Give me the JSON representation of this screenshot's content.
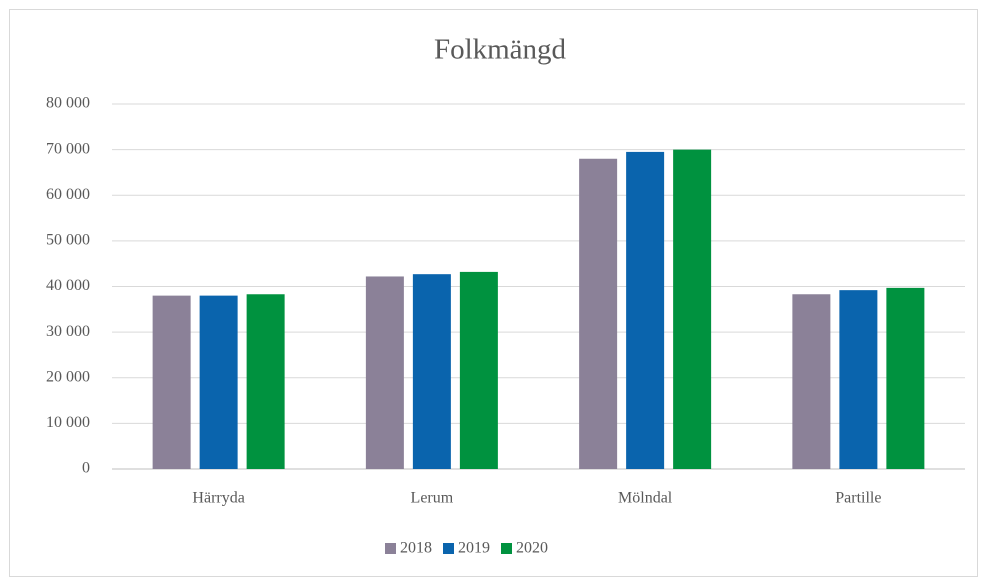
{
  "chart_data": {
    "type": "bar",
    "title": "Folkmängd",
    "categories": [
      "Härryda",
      "Lerum",
      "Mölndal",
      "Partille"
    ],
    "series": [
      {
        "name": "2018",
        "color": "#8b8198",
        "values": [
          38000,
          42200,
          68000,
          38300
        ]
      },
      {
        "name": "2019",
        "color": "#0a64ad",
        "values": [
          38000,
          42700,
          69500,
          39200
        ]
      },
      {
        "name": "2020",
        "color": "#00923f",
        "values": [
          38300,
          43200,
          70000,
          39700
        ]
      }
    ],
    "ylim": [
      0,
      80000
    ],
    "yticks": [
      0,
      {
        "value": 10000,
        "label": "10 000"
      },
      {
        "value": 20000,
        "label": "20 000"
      },
      {
        "value": 30000,
        "label": "30 000"
      },
      {
        "value": 40000,
        "label": "40 000"
      },
      {
        "value": 50000,
        "label": "50 000"
      },
      {
        "value": 60000,
        "label": "60 000"
      },
      {
        "value": 70000,
        "label": "70 000"
      },
      {
        "value": 80000,
        "label": "80 000"
      }
    ],
    "grid": true,
    "legend": "bottom"
  }
}
